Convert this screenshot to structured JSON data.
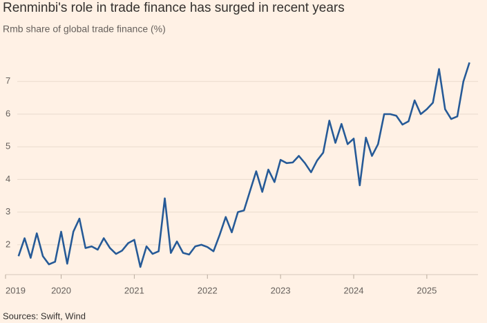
{
  "chart_data": {
    "type": "line",
    "title": "Renminbi's role in trade finance has surged in recent years",
    "subtitle": "Rmb share of global trade finance (%)",
    "source": "Sources: Swift, Wind",
    "x": [
      2019.417,
      2019.5,
      2019.583,
      2019.667,
      2019.75,
      2019.833,
      2019.917,
      2020.0,
      2020.083,
      2020.167,
      2020.25,
      2020.333,
      2020.417,
      2020.5,
      2020.583,
      2020.667,
      2020.75,
      2020.833,
      2020.917,
      2021.0,
      2021.083,
      2021.167,
      2021.25,
      2021.333,
      2021.417,
      2021.5,
      2021.583,
      2021.667,
      2021.75,
      2021.833,
      2021.917,
      2022.0,
      2022.083,
      2022.167,
      2022.25,
      2022.333,
      2022.417,
      2022.5,
      2022.583,
      2022.667,
      2022.75,
      2022.833,
      2022.917,
      2023.0,
      2023.083,
      2023.167,
      2023.25,
      2023.333,
      2023.417,
      2023.5,
      2023.583,
      2023.667,
      2023.75,
      2023.833,
      2023.917,
      2024.0,
      2024.083,
      2024.167,
      2024.25,
      2024.333,
      2024.417,
      2024.5,
      2024.583,
      2024.667,
      2024.75,
      2024.833,
      2024.917,
      2025.0,
      2025.083,
      2025.167,
      2025.25,
      2025.333,
      2025.417,
      2025.5,
      2025.583
    ],
    "series": [
      {
        "name": "Rmb share",
        "color": "#265a97",
        "values": [
          1.65,
          2.2,
          1.6,
          2.35,
          1.65,
          1.4,
          1.48,
          2.4,
          1.42,
          2.4,
          2.8,
          1.9,
          1.95,
          1.85,
          2.2,
          1.9,
          1.72,
          1.82,
          2.05,
          2.15,
          1.32,
          1.95,
          1.72,
          1.8,
          3.42,
          1.75,
          2.1,
          1.75,
          1.7,
          1.95,
          2.0,
          1.93,
          1.8,
          2.3,
          2.85,
          2.38,
          3.0,
          3.05,
          3.65,
          4.25,
          3.62,
          4.3,
          3.92,
          4.6,
          4.5,
          4.52,
          4.72,
          4.5,
          4.22,
          4.58,
          4.82,
          5.8,
          5.12,
          5.7,
          5.08,
          5.25,
          3.82,
          5.28,
          4.72,
          5.08,
          6.0,
          6.0,
          5.95,
          5.68,
          5.78,
          6.42,
          6.0,
          6.15,
          6.35,
          7.38,
          6.15,
          5.85,
          5.93,
          7.0,
          7.58
        ]
      }
    ],
    "xlim": [
      2019.4,
      2025.7
    ],
    "xticks": [
      2019,
      2020,
      2021,
      2022,
      2023,
      2024,
      2025
    ],
    "ylim": [
      1.15,
      7.8
    ],
    "yticks": [
      2,
      3,
      4,
      5,
      6,
      7
    ],
    "grid": true
  }
}
